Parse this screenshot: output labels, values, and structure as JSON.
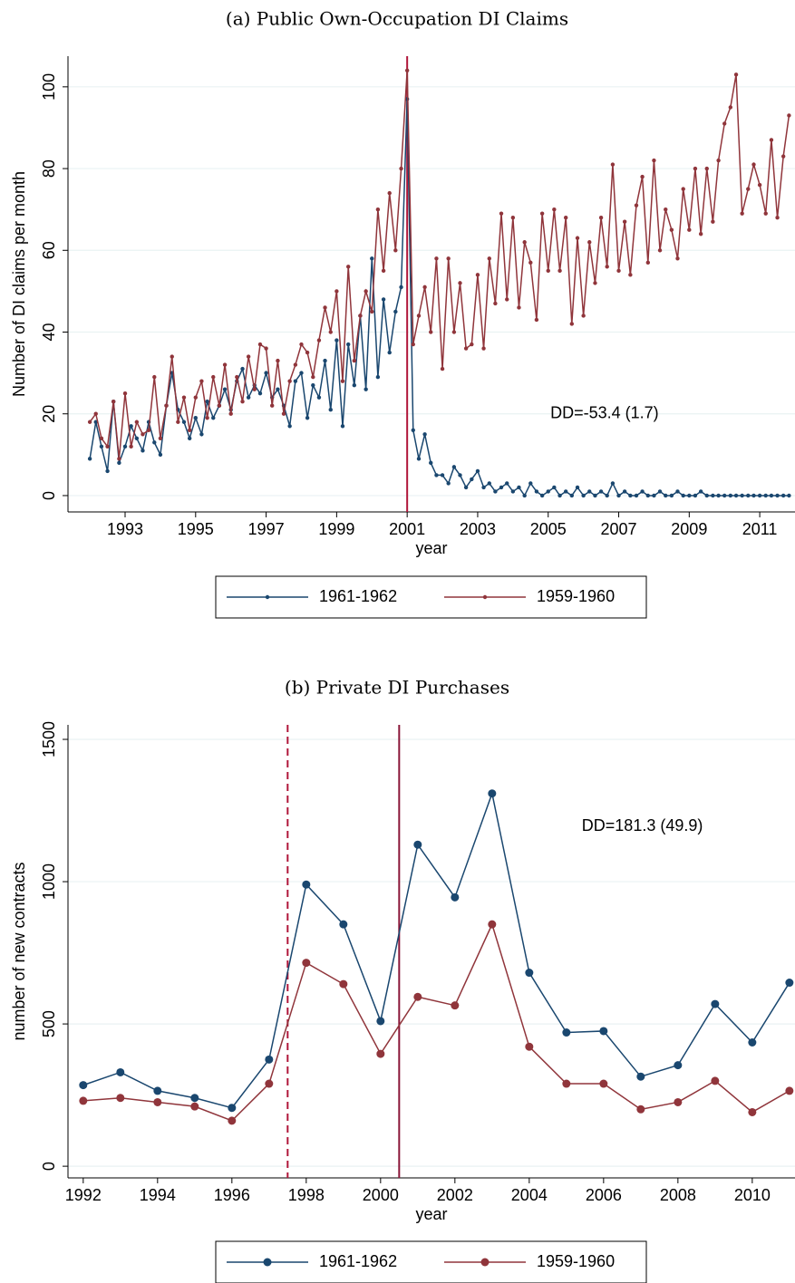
{
  "chart_data": [
    {
      "type": "line",
      "title": "(a) Public Own-Occupation DI Claims",
      "xlabel": "year",
      "ylabel": "Number of DI claims per month",
      "annotation": "DD=-53.4 (1.7)",
      "x": [
        1992,
        1992.17,
        1992.33,
        1992.5,
        1992.67,
        1992.83,
        1993,
        1993.17,
        1993.33,
        1993.5,
        1993.67,
        1993.83,
        1994,
        1994.17,
        1994.33,
        1994.5,
        1994.67,
        1994.83,
        1995,
        1995.17,
        1995.33,
        1995.5,
        1995.67,
        1995.83,
        1996,
        1996.17,
        1996.33,
        1996.5,
        1996.67,
        1996.83,
        1997,
        1997.17,
        1997.33,
        1997.5,
        1997.67,
        1997.83,
        1998,
        1998.17,
        1998.33,
        1998.5,
        1998.67,
        1998.83,
        1999,
        1999.17,
        1999.33,
        1999.5,
        1999.67,
        1999.83,
        2000,
        2000.17,
        2000.33,
        2000.5,
        2000.67,
        2000.83,
        2001,
        2001.17,
        2001.33,
        2001.5,
        2001.67,
        2001.83,
        2002,
        2002.17,
        2002.33,
        2002.5,
        2002.67,
        2002.83,
        2003,
        2003.17,
        2003.33,
        2003.5,
        2003.67,
        2003.83,
        2004,
        2004.17,
        2004.33,
        2004.5,
        2004.67,
        2004.83,
        2005,
        2005.17,
        2005.33,
        2005.5,
        2005.67,
        2005.83,
        2006,
        2006.17,
        2006.33,
        2006.5,
        2006.67,
        2006.83,
        2007,
        2007.17,
        2007.33,
        2007.5,
        2007.67,
        2007.83,
        2008,
        2008.17,
        2008.33,
        2008.5,
        2008.67,
        2008.83,
        2009,
        2009.17,
        2009.33,
        2009.5,
        2009.67,
        2009.83,
        2010,
        2010.17,
        2010.33,
        2010.5,
        2010.67,
        2010.83,
        2011,
        2011.17,
        2011.33,
        2011.5,
        2011.67,
        2011.83
      ],
      "series": [
        {
          "name": "1961-1962",
          "color": "#1a476f",
          "values": [
            9,
            18,
            12,
            6,
            23,
            8,
            12,
            17,
            14,
            11,
            18,
            13,
            10,
            22,
            30,
            21,
            18,
            14,
            19,
            15,
            23,
            19,
            22,
            26,
            21,
            28,
            31,
            24,
            27,
            25,
            30,
            24,
            26,
            22,
            17,
            28,
            30,
            19,
            27,
            24,
            33,
            21,
            38,
            17,
            37,
            27,
            44,
            26,
            58,
            29,
            48,
            35,
            45,
            51,
            97,
            16,
            9,
            15,
            8,
            5,
            5,
            3,
            7,
            5,
            2,
            4,
            6,
            2,
            3,
            1,
            2,
            3,
            1,
            2,
            0,
            3,
            1,
            0,
            1,
            2,
            0,
            1,
            0,
            2,
            0,
            1,
            0,
            1,
            0,
            3,
            0,
            1,
            0,
            0,
            1,
            0,
            0,
            1,
            0,
            0,
            1,
            0,
            0,
            0,
            1,
            0,
            0,
            0,
            0,
            0,
            0,
            0,
            0,
            0,
            0,
            0,
            0,
            0,
            0,
            0
          ]
        },
        {
          "name": "1959-1960",
          "color": "#90353b",
          "values": [
            18,
            20,
            14,
            12,
            23,
            9,
            25,
            12,
            18,
            15,
            16,
            29,
            14,
            22,
            34,
            18,
            24,
            16,
            24,
            28,
            19,
            29,
            22,
            32,
            20,
            29,
            23,
            34,
            26,
            37,
            36,
            22,
            33,
            20,
            28,
            32,
            37,
            35,
            29,
            38,
            46,
            40,
            50,
            28,
            56,
            33,
            44,
            50,
            45,
            70,
            55,
            74,
            60,
            80,
            104,
            37,
            44,
            51,
            40,
            58,
            31,
            58,
            40,
            52,
            36,
            37,
            54,
            36,
            58,
            47,
            69,
            48,
            68,
            46,
            62,
            57,
            43,
            69,
            55,
            70,
            55,
            68,
            42,
            63,
            44,
            62,
            52,
            68,
            56,
            81,
            55,
            67,
            54,
            71,
            78,
            57,
            82,
            60,
            70,
            65,
            58,
            75,
            65,
            80,
            64,
            80,
            67,
            82,
            91,
            95,
            103,
            69,
            75,
            81,
            76,
            69,
            87,
            68,
            83,
            93
          ]
        }
      ],
      "xlim": [
        1991.38,
        2012.0
      ],
      "ylim": [
        -4,
        107.5
      ],
      "xticks": [
        1993,
        1995,
        1997,
        1999,
        2001,
        2003,
        2005,
        2007,
        2009,
        2011
      ],
      "yticks": [
        0,
        20,
        40,
        60,
        80,
        100
      ],
      "grid": true,
      "vlines": [
        {
          "x": 2001,
          "style": "solid",
          "color": "#b0163a"
        }
      ]
    },
    {
      "type": "line",
      "title": "(b) Private DI Purchases",
      "xlabel": "year",
      "ylabel": "number of new contracts",
      "annotation": "DD=181.3 (49.9)",
      "x": [
        1992,
        1993,
        1994,
        1995,
        1996,
        1997,
        1998,
        1999,
        2000,
        2001,
        2002,
        2003,
        2004,
        2005,
        2006,
        2007,
        2008,
        2009,
        2010,
        2011
      ],
      "series": [
        {
          "name": "1961-1962",
          "color": "#1a476f",
          "values": [
            285,
            330,
            265,
            240,
            205,
            375,
            990,
            850,
            510,
            1130,
            945,
            1310,
            680,
            470,
            475,
            315,
            355,
            570,
            435,
            645
          ]
        },
        {
          "name": "1959-1960",
          "color": "#90353b",
          "values": [
            230,
            240,
            225,
            210,
            160,
            290,
            715,
            640,
            395,
            595,
            565,
            850,
            420,
            290,
            290,
            200,
            225,
            300,
            190,
            265
          ]
        }
      ],
      "xlim": [
        1991.59,
        2011.15
      ],
      "ylim": [
        -41,
        1551
      ],
      "xticks": [
        1992,
        1994,
        1996,
        1998,
        2000,
        2002,
        2004,
        2006,
        2008,
        2010
      ],
      "yticks": [
        0,
        500,
        1000,
        1500
      ],
      "grid": true,
      "vlines": [
        {
          "x": 1997.5,
          "style": "dashed",
          "color": "#b0163a"
        },
        {
          "x": 2000.5,
          "style": "solid",
          "color": "#8a1538"
        }
      ]
    }
  ]
}
